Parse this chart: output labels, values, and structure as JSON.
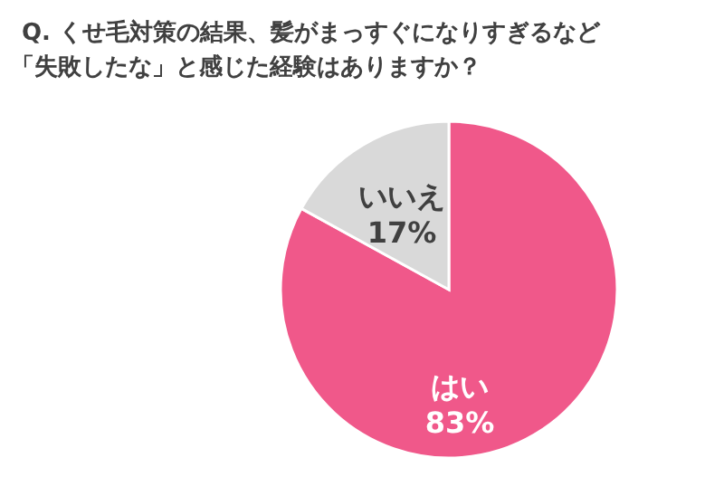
{
  "chart_data": {
    "type": "pie",
    "title": "Q. くせ毛対策の結果、髪がまっすぐになりすぎるなど「失敗したな」と感じた経験はありますか？",
    "categories": [
      "はい",
      "いいえ"
    ],
    "values": [
      83,
      17
    ],
    "colors": [
      "#f0588a",
      "#d9d9d9"
    ],
    "value_labels": [
      "83%",
      "17%"
    ],
    "legend": false
  }
}
